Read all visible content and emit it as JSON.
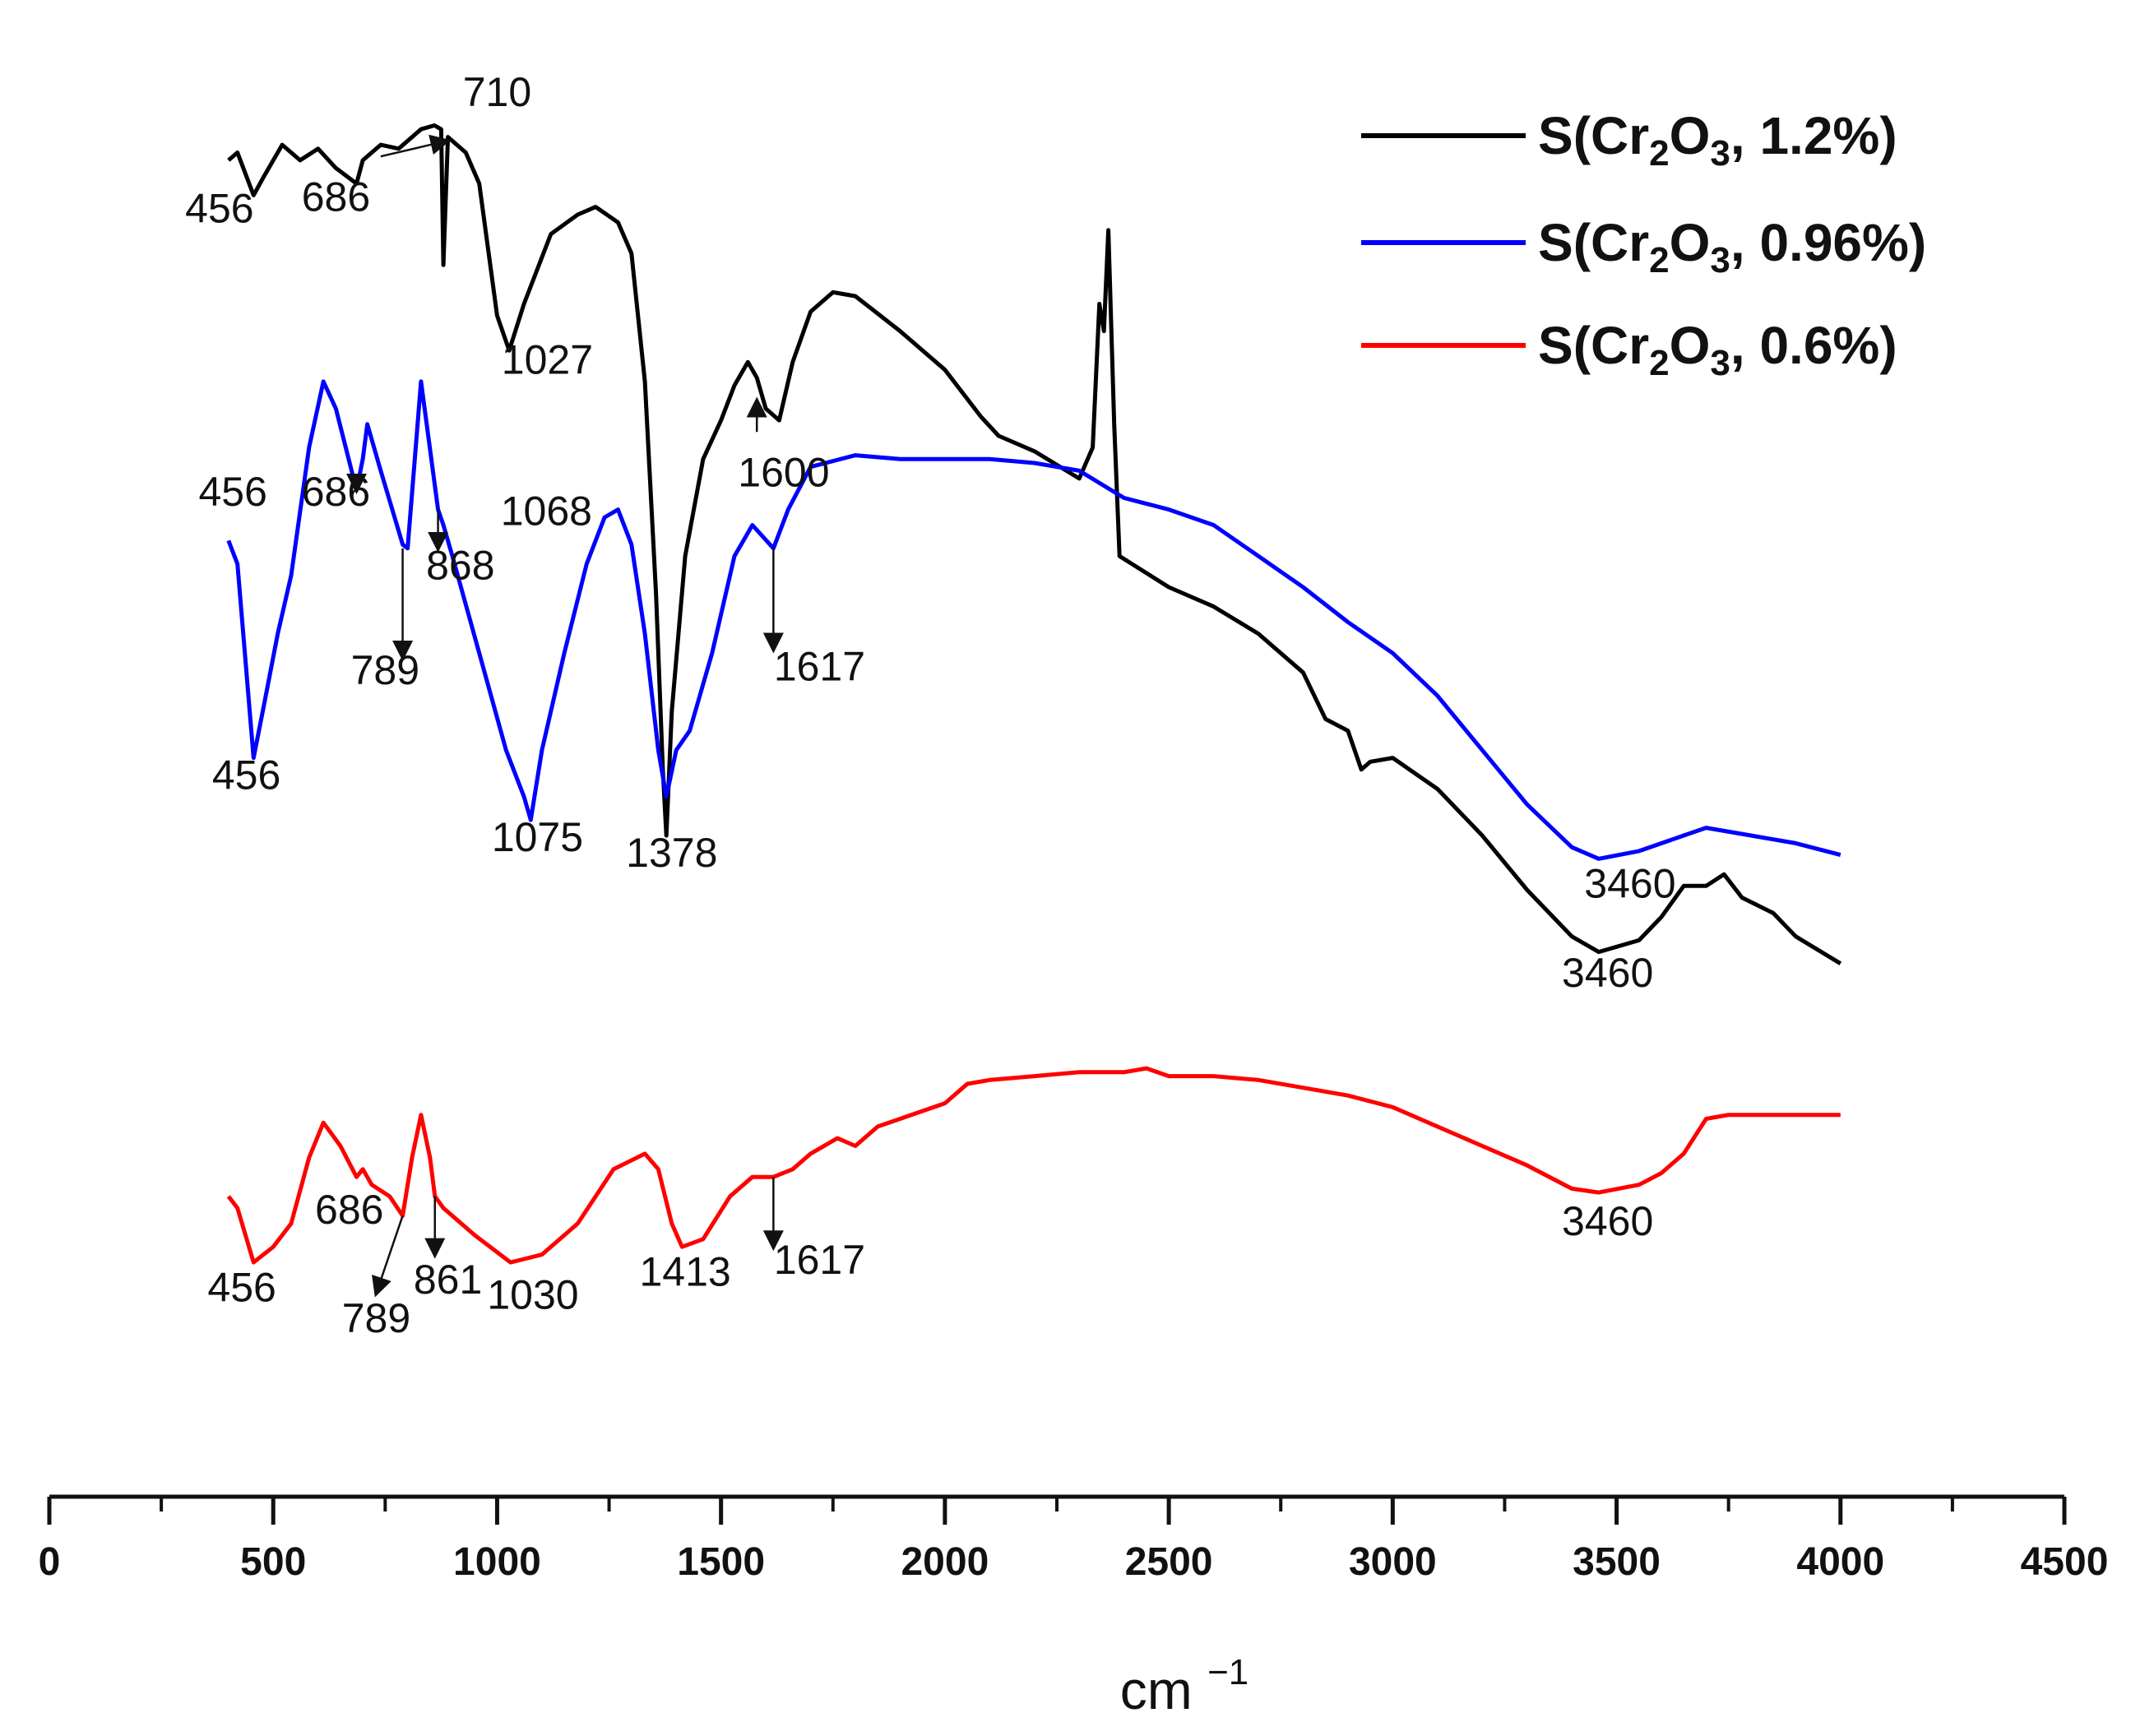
{
  "chart_data": {
    "type": "line",
    "title": "",
    "xlabel": "cm",
    "xlabel_exponent": "−1",
    "ylabel": "",
    "xlim": [
      0,
      4500
    ],
    "x_ticks": [
      0,
      500,
      1000,
      1500,
      2000,
      2500,
      3000,
      3500,
      4000,
      4500
    ],
    "x_tick_labels": [
      "0",
      "500",
      "1000",
      "1500",
      "2000",
      "2500",
      "3000",
      "3500",
      "4000",
      "4500"
    ],
    "y_axis_visible": false,
    "grid": false,
    "legend_position": "top-right",
    "series": [
      {
        "name": "S(Cr2O3, 1.2%)",
        "legend_prefix": "S(Cr",
        "legend_sub1": "2",
        "legend_mid": "O",
        "legend_sub2": "3",
        "legend_suffix": ", 1.2%)",
        "color": "#000000",
        "points": [
          [
            400,
            0.82
          ],
          [
            420,
            0.84
          ],
          [
            456,
            0.73
          ],
          [
            480,
            0.78
          ],
          [
            520,
            0.86
          ],
          [
            560,
            0.82
          ],
          [
            600,
            0.85
          ],
          [
            640,
            0.8
          ],
          [
            686,
            0.76
          ],
          [
            700,
            0.82
          ],
          [
            740,
            0.86
          ],
          [
            780,
            0.85
          ],
          [
            830,
            0.9
          ],
          [
            860,
            0.91
          ],
          [
            875,
            0.9
          ],
          [
            880,
            0.55
          ],
          [
            890,
            0.88
          ],
          [
            930,
            0.84
          ],
          [
            960,
            0.76
          ],
          [
            1000,
            0.42
          ],
          [
            1027,
            0.33
          ],
          [
            1060,
            0.45
          ],
          [
            1120,
            0.63
          ],
          [
            1180,
            0.68
          ],
          [
            1220,
            0.7
          ],
          [
            1270,
            0.66
          ],
          [
            1300,
            0.58
          ],
          [
            1330,
            0.25
          ],
          [
            1355,
            -0.3
          ],
          [
            1370,
            -0.75
          ],
          [
            1378,
            -0.92
          ],
          [
            1390,
            -0.6
          ],
          [
            1420,
            -0.2
          ],
          [
            1460,
            0.05
          ],
          [
            1500,
            0.15
          ],
          [
            1530,
            0.24
          ],
          [
            1560,
            0.3
          ],
          [
            1580,
            0.26
          ],
          [
            1600,
            0.18
          ],
          [
            1630,
            0.15
          ],
          [
            1660,
            0.3
          ],
          [
            1700,
            0.43
          ],
          [
            1750,
            0.48
          ],
          [
            1800,
            0.47
          ],
          [
            1900,
            0.38
          ],
          [
            2000,
            0.28
          ],
          [
            2080,
            0.16
          ],
          [
            2120,
            0.11
          ],
          [
            2200,
            0.07
          ],
          [
            2300,
            0.0
          ],
          [
            2330,
            0.08
          ],
          [
            2345,
            0.45
          ],
          [
            2355,
            0.38
          ],
          [
            2365,
            0.64
          ],
          [
            2378,
            0.14
          ],
          [
            2390,
            -0.2
          ],
          [
            2500,
            -0.28
          ],
          [
            2600,
            -0.33
          ],
          [
            2700,
            -0.4
          ],
          [
            2800,
            -0.5
          ],
          [
            2850,
            -0.62
          ],
          [
            2900,
            -0.65
          ],
          [
            2930,
            -0.75
          ],
          [
            2950,
            -0.73
          ],
          [
            3000,
            -0.72
          ],
          [
            3100,
            -0.8
          ],
          [
            3200,
            -0.92
          ],
          [
            3300,
            -1.06
          ],
          [
            3400,
            -1.18
          ],
          [
            3460,
            -1.22
          ],
          [
            3550,
            -1.19
          ],
          [
            3600,
            -1.13
          ],
          [
            3650,
            -1.05
          ],
          [
            3700,
            -1.05
          ],
          [
            3740,
            -1.02
          ],
          [
            3780,
            -1.08
          ],
          [
            3850,
            -1.12
          ],
          [
            3900,
            -1.18
          ],
          [
            4000,
            -1.25
          ]
        ],
        "peak_labels": [
          "456",
          "686",
          "710",
          "1027",
          "1378",
          "1600",
          "3460"
        ]
      },
      {
        "name": "S(Cr2O3, 0.96%)",
        "legend_prefix": "S(Cr",
        "legend_sub1": "2",
        "legend_mid": "O",
        "legend_sub2": "3",
        "legend_suffix": ", 0.96%)",
        "color": "#0000ff",
        "points": [
          [
            400,
            -0.16
          ],
          [
            420,
            -0.22
          ],
          [
            456,
            -0.72
          ],
          [
            480,
            -0.58
          ],
          [
            510,
            -0.4
          ],
          [
            540,
            -0.25
          ],
          [
            580,
            0.08
          ],
          [
            612,
            0.25
          ],
          [
            640,
            0.18
          ],
          [
            686,
            -0.03
          ],
          [
            700,
            0.05
          ],
          [
            710,
            0.14
          ],
          [
            740,
            0.02
          ],
          [
            789,
            -0.17
          ],
          [
            800,
            -0.18
          ],
          [
            830,
            0.25
          ],
          [
            868,
            -0.08
          ],
          [
            880,
            -0.12
          ],
          [
            900,
            -0.2
          ],
          [
            960,
            -0.45
          ],
          [
            1020,
            -0.7
          ],
          [
            1060,
            -0.82
          ],
          [
            1075,
            -0.88
          ],
          [
            1100,
            -0.7
          ],
          [
            1150,
            -0.45
          ],
          [
            1200,
            -0.22
          ],
          [
            1240,
            -0.1
          ],
          [
            1270,
            -0.08
          ],
          [
            1300,
            -0.17
          ],
          [
            1330,
            -0.4
          ],
          [
            1360,
            -0.7
          ],
          [
            1378,
            -0.82
          ],
          [
            1400,
            -0.7
          ],
          [
            1430,
            -0.65
          ],
          [
            1480,
            -0.45
          ],
          [
            1530,
            -0.2
          ],
          [
            1570,
            -0.12
          ],
          [
            1617,
            -0.18
          ],
          [
            1650,
            -0.08
          ],
          [
            1700,
            0.03
          ],
          [
            1800,
            0.06
          ],
          [
            1900,
            0.05
          ],
          [
            2000,
            0.05
          ],
          [
            2100,
            0.05
          ],
          [
            2200,
            0.04
          ],
          [
            2300,
            0.02
          ],
          [
            2400,
            -0.05
          ],
          [
            2500,
            -0.08
          ],
          [
            2600,
            -0.12
          ],
          [
            2700,
            -0.2
          ],
          [
            2800,
            -0.28
          ],
          [
            2900,
            -0.37
          ],
          [
            3000,
            -0.45
          ],
          [
            3100,
            -0.56
          ],
          [
            3200,
            -0.7
          ],
          [
            3300,
            -0.84
          ],
          [
            3400,
            -0.95
          ],
          [
            3460,
            -0.98
          ],
          [
            3550,
            -0.96
          ],
          [
            3650,
            -0.92
          ],
          [
            3700,
            -0.9
          ],
          [
            3800,
            -0.92
          ],
          [
            3900,
            -0.94
          ],
          [
            4000,
            -0.97
          ]
        ],
        "peak_labels": [
          "456",
          "456",
          "686",
          "789",
          "868",
          "1068",
          "1075",
          "1617",
          "3460"
        ]
      },
      {
        "name": "S(Cr2O3, 0.6%)",
        "legend_prefix": "S(Cr",
        "legend_sub1": "2",
        "legend_mid": "O",
        "legend_sub2": "3",
        "legend_suffix": ", 0.6%)",
        "color": "#ff0000",
        "points": [
          [
            400,
            -1.85
          ],
          [
            420,
            -1.88
          ],
          [
            456,
            -2.02
          ],
          [
            500,
            -1.98
          ],
          [
            540,
            -1.92
          ],
          [
            580,
            -1.75
          ],
          [
            612,
            -1.66
          ],
          [
            650,
            -1.72
          ],
          [
            686,
            -1.8
          ],
          [
            700,
            -1.78
          ],
          [
            720,
            -1.82
          ],
          [
            760,
            -1.85
          ],
          [
            789,
            -1.9
          ],
          [
            810,
            -1.75
          ],
          [
            830,
            -1.64
          ],
          [
            850,
            -1.75
          ],
          [
            861,
            -1.85
          ],
          [
            880,
            -1.88
          ],
          [
            950,
            -1.95
          ],
          [
            1030,
            -2.02
          ],
          [
            1100,
            -2.0
          ],
          [
            1180,
            -1.92
          ],
          [
            1260,
            -1.78
          ],
          [
            1330,
            -1.74
          ],
          [
            1360,
            -1.78
          ],
          [
            1390,
            -1.92
          ],
          [
            1413,
            -1.98
          ],
          [
            1460,
            -1.96
          ],
          [
            1520,
            -1.85
          ],
          [
            1570,
            -1.8
          ],
          [
            1617,
            -1.8
          ],
          [
            1660,
            -1.78
          ],
          [
            1700,
            -1.74
          ],
          [
            1760,
            -1.7
          ],
          [
            1800,
            -1.72
          ],
          [
            1850,
            -1.67
          ],
          [
            1900,
            -1.65
          ],
          [
            1950,
            -1.63
          ],
          [
            2000,
            -1.61
          ],
          [
            2050,
            -1.56
          ],
          [
            2100,
            -1.55
          ],
          [
            2200,
            -1.54
          ],
          [
            2300,
            -1.53
          ],
          [
            2400,
            -1.53
          ],
          [
            2450,
            -1.52
          ],
          [
            2500,
            -1.54
          ],
          [
            2600,
            -1.54
          ],
          [
            2700,
            -1.55
          ],
          [
            2800,
            -1.57
          ],
          [
            2900,
            -1.59
          ],
          [
            3000,
            -1.62
          ],
          [
            3100,
            -1.67
          ],
          [
            3200,
            -1.72
          ],
          [
            3300,
            -1.77
          ],
          [
            3400,
            -1.83
          ],
          [
            3460,
            -1.84
          ],
          [
            3550,
            -1.82
          ],
          [
            3600,
            -1.79
          ],
          [
            3650,
            -1.74
          ],
          [
            3700,
            -1.65
          ],
          [
            3750,
            -1.64
          ],
          [
            3800,
            -1.64
          ],
          [
            3900,
            -1.64
          ],
          [
            4000,
            -1.64
          ]
        ],
        "peak_labels": [
          "456",
          "686",
          "789",
          "861",
          "1030",
          "1413",
          "1617",
          "3460"
        ]
      }
    ],
    "annotations": [
      {
        "text": "710",
        "target_x": 888,
        "target_y": 0.87,
        "label_x": 1000,
        "label_y": 0.96,
        "arrow": true,
        "from_x": 740,
        "from_y": 0.83
      },
      {
        "text": "456",
        "target_x": 456,
        "target_y": 0.73,
        "label_x": 380,
        "label_y": 0.66,
        "arrow": false
      },
      {
        "text": "686",
        "target_x": 686,
        "target_y": 0.76,
        "label_x": 640,
        "label_y": 0.69,
        "arrow": false
      },
      {
        "text": "1027",
        "target_x": 1027,
        "target_y": 0.33,
        "label_x": 1112,
        "label_y": 0.27,
        "arrow": false
      },
      {
        "text": "1600",
        "target_x": 1580,
        "target_y": 0.2,
        "label_x": 1640,
        "label_y": -0.02,
        "arrow": true,
        "from_x": 1580,
        "from_y": 0.12
      },
      {
        "text": "3460",
        "target_x": 3460,
        "target_y": -1.22,
        "label_x": 3480,
        "label_y": -1.31,
        "arrow": false
      },
      {
        "text": "456",
        "target_x": 400,
        "target_y": -0.16,
        "label_x": 410,
        "label_y": -0.07,
        "arrow": false
      },
      {
        "text": "686",
        "target_x": 686,
        "target_y": -0.03,
        "label_x": 640,
        "label_y": -0.07,
        "arrow": true,
        "from_x": 686,
        "from_y": -0.02
      },
      {
        "text": "789",
        "target_x": 789,
        "target_y": -0.46,
        "label_x": 750,
        "label_y": -0.53,
        "arrow": true,
        "from_x": 789,
        "from_y": -0.18
      },
      {
        "text": "868",
        "target_x": 868,
        "target_y": -0.18,
        "label_x": 918,
        "label_y": -0.26,
        "arrow": true,
        "from_x": 868,
        "from_y": -0.08
      },
      {
        "text": "1068",
        "target_x": 1068,
        "target_y": -0.15,
        "label_x": 1110,
        "label_y": -0.12,
        "arrow": false
      },
      {
        "text": "456",
        "target_x": 456,
        "target_y": -0.72,
        "label_x": 440,
        "label_y": -0.8,
        "arrow": false
      },
      {
        "text": "1075",
        "target_x": 1075,
        "target_y": -0.88,
        "label_x": 1090,
        "label_y": -0.96,
        "arrow": false
      },
      {
        "text": "1378",
        "target_x": 1378,
        "target_y": -0.92,
        "label_x": 1390,
        "label_y": -1.0,
        "arrow": false
      },
      {
        "text": "1617",
        "target_x": 1617,
        "target_y": -0.44,
        "label_x": 1720,
        "label_y": -0.52,
        "arrow": true,
        "from_x": 1617,
        "from_y": -0.18
      },
      {
        "text": "3460",
        "target_x": 3460,
        "target_y": -0.98,
        "label_x": 3530,
        "label_y": -1.08,
        "arrow": false
      },
      {
        "text": "686",
        "target_x": 686,
        "target_y": -1.8,
        "label_x": 670,
        "label_y": -1.92,
        "arrow": false
      },
      {
        "text": "789",
        "target_x": 730,
        "target_y": -2.1,
        "label_x": 730,
        "label_y": -2.2,
        "arrow": true,
        "from_x": 789,
        "from_y": -1.9
      },
      {
        "text": "861",
        "target_x": 861,
        "target_y": -2.0,
        "label_x": 890,
        "label_y": -2.1,
        "arrow": true,
        "from_x": 861,
        "from_y": -1.85
      },
      {
        "text": "456",
        "target_x": 456,
        "target_y": -2.02,
        "label_x": 430,
        "label_y": -2.12,
        "arrow": false
      },
      {
        "text": "1030",
        "target_x": 1030,
        "target_y": -2.02,
        "label_x": 1080,
        "label_y": -2.14,
        "arrow": false
      },
      {
        "text": "1413",
        "target_x": 1413,
        "target_y": -1.98,
        "label_x": 1420,
        "label_y": -2.08,
        "arrow": false
      },
      {
        "text": "1617",
        "target_x": 1617,
        "target_y": -1.98,
        "label_x": 1720,
        "label_y": -2.05,
        "arrow": true,
        "from_x": 1617,
        "from_y": -1.8
      },
      {
        "text": "3460",
        "target_x": 3460,
        "target_y": -1.84,
        "label_x": 3480,
        "label_y": -1.95,
        "arrow": false
      }
    ]
  }
}
